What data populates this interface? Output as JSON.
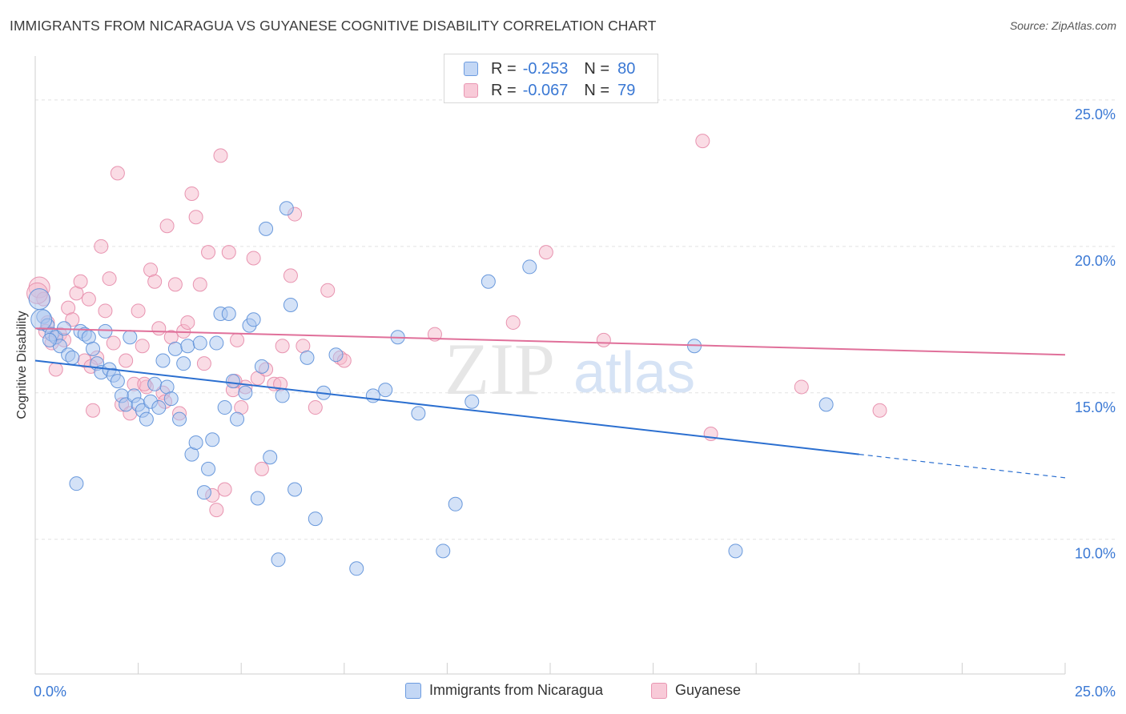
{
  "title": "IMMIGRANTS FROM NICARAGUA VS GUYANESE COGNITIVE DISABILITY CORRELATION CHART",
  "source": "Source: ZipAtlas.com",
  "watermark": {
    "zip": "ZIP",
    "atlas": "atlas"
  },
  "colors": {
    "blue_fill": "#a9c6f0",
    "blue_stroke": "#5b8fd8",
    "blue_line": "#2b6fd0",
    "pink_fill": "#f6b9cc",
    "pink_stroke": "#e58aa8",
    "pink_line": "#e0709a",
    "axis_text": "#3a78d4",
    "grid": "#e2e2e2"
  },
  "legend": {
    "rows": [
      {
        "r_label": "R =",
        "r_value": "-0.253",
        "n_label": "N =",
        "n_value": "80",
        "color": "blue"
      },
      {
        "r_label": "R =",
        "r_value": "-0.067",
        "n_label": "N =",
        "n_value": "79",
        "color": "pink"
      }
    ]
  },
  "bottom_legend": [
    "Immigrants from Nicaragua",
    "Guyanese"
  ],
  "chart_data": {
    "type": "scatter",
    "xlabel": "",
    "ylabel": "Cognitive Disability",
    "xlim": [
      0,
      25
    ],
    "ylim": [
      5.4,
      26.5
    ],
    "x_tick_labels": [
      {
        "value": 0,
        "label": "0.0%"
      },
      {
        "value": 25,
        "label": "25.0%"
      }
    ],
    "y_tick_labels": [
      {
        "value": 25,
        "label": "25.0%"
      },
      {
        "value": 20,
        "label": "20.0%"
      },
      {
        "value": 15,
        "label": "15.0%"
      },
      {
        "value": 10,
        "label": "10.0%"
      }
    ],
    "x_minor_ticks": [
      0,
      2.5,
      5,
      7.5,
      10,
      12.5,
      15,
      17.5,
      20,
      22.5,
      25
    ],
    "grid": true,
    "series": [
      {
        "name": "Immigrants from Nicaragua",
        "color": "blue",
        "trend": {
          "x0": 0,
          "y0": 16.1,
          "x1": 20,
          "y1": 12.9,
          "dashed_to_x": 25,
          "dashed_to_y": 12.1
        },
        "points": [
          [
            0.1,
            18.2
          ],
          [
            0.2,
            17.6
          ],
          [
            0.3,
            17.3
          ],
          [
            0.4,
            17.0
          ],
          [
            0.5,
            16.9
          ],
          [
            0.6,
            16.6
          ],
          [
            0.7,
            17.2
          ],
          [
            0.8,
            16.3
          ],
          [
            0.9,
            16.2
          ],
          [
            1.1,
            17.1
          ],
          [
            1.2,
            17.0
          ],
          [
            1.3,
            16.9
          ],
          [
            1.4,
            16.5
          ],
          [
            1.5,
            16.0
          ],
          [
            1.6,
            15.7
          ],
          [
            1.7,
            17.1
          ],
          [
            1.8,
            15.8
          ],
          [
            1.9,
            15.6
          ],
          [
            2.0,
            15.4
          ],
          [
            2.1,
            14.9
          ],
          [
            2.2,
            14.6
          ],
          [
            2.3,
            16.9
          ],
          [
            2.4,
            14.9
          ],
          [
            2.5,
            14.6
          ],
          [
            2.6,
            14.4
          ],
          [
            2.7,
            14.1
          ],
          [
            2.8,
            14.7
          ],
          [
            2.9,
            15.3
          ],
          [
            3.0,
            14.5
          ],
          [
            3.1,
            16.1
          ],
          [
            3.2,
            15.2
          ],
          [
            3.3,
            14.8
          ],
          [
            3.4,
            16.5
          ],
          [
            3.5,
            14.1
          ],
          [
            3.6,
            16.0
          ],
          [
            3.7,
            16.6
          ],
          [
            3.8,
            12.9
          ],
          [
            3.9,
            13.3
          ],
          [
            4.0,
            16.7
          ],
          [
            4.1,
            11.6
          ],
          [
            4.2,
            12.4
          ],
          [
            4.3,
            13.4
          ],
          [
            4.4,
            16.7
          ],
          [
            4.5,
            17.7
          ],
          [
            4.6,
            14.5
          ],
          [
            4.7,
            17.7
          ],
          [
            4.8,
            15.4
          ],
          [
            4.9,
            14.1
          ],
          [
            5.1,
            15.0
          ],
          [
            5.2,
            17.3
          ],
          [
            5.3,
            17.5
          ],
          [
            5.4,
            11.4
          ],
          [
            5.5,
            15.9
          ],
          [
            5.6,
            20.6
          ],
          [
            5.7,
            12.8
          ],
          [
            5.9,
            9.3
          ],
          [
            6.0,
            14.9
          ],
          [
            6.1,
            21.3
          ],
          [
            6.2,
            18.0
          ],
          [
            6.3,
            11.7
          ],
          [
            6.6,
            16.2
          ],
          [
            6.8,
            10.7
          ],
          [
            7.0,
            15.0
          ],
          [
            7.3,
            16.3
          ],
          [
            7.8,
            9.0
          ],
          [
            8.2,
            14.9
          ],
          [
            8.5,
            15.1
          ],
          [
            8.8,
            16.9
          ],
          [
            9.3,
            14.3
          ],
          [
            9.9,
            9.6
          ],
          [
            10.2,
            11.2
          ],
          [
            10.6,
            14.7
          ],
          [
            11.0,
            18.8
          ],
          [
            12.0,
            19.3
          ],
          [
            16.0,
            16.6
          ],
          [
            17.0,
            9.6
          ],
          [
            19.2,
            14.6
          ],
          [
            0.15,
            17.5
          ],
          [
            0.35,
            16.8
          ],
          [
            1.0,
            11.9
          ]
        ]
      },
      {
        "name": "Guyanese",
        "color": "pink",
        "trend": {
          "x0": 0,
          "y0": 17.2,
          "x1": 25,
          "y1": 16.3
        },
        "points": [
          [
            0.1,
            18.6
          ],
          [
            0.2,
            18.2
          ],
          [
            0.3,
            17.4
          ],
          [
            0.4,
            16.7
          ],
          [
            0.5,
            15.8
          ],
          [
            0.6,
            17.0
          ],
          [
            0.7,
            16.8
          ],
          [
            0.8,
            17.9
          ],
          [
            0.9,
            17.5
          ],
          [
            1.0,
            18.4
          ],
          [
            1.1,
            18.8
          ],
          [
            1.2,
            16.1
          ],
          [
            1.3,
            18.2
          ],
          [
            1.4,
            14.4
          ],
          [
            1.5,
            16.2
          ],
          [
            1.6,
            20.0
          ],
          [
            1.7,
            17.8
          ],
          [
            1.8,
            18.9
          ],
          [
            1.9,
            16.7
          ],
          [
            2.0,
            22.5
          ],
          [
            2.1,
            14.6
          ],
          [
            2.2,
            16.1
          ],
          [
            2.3,
            14.3
          ],
          [
            2.4,
            15.3
          ],
          [
            2.5,
            17.8
          ],
          [
            2.6,
            16.6
          ],
          [
            2.7,
            15.2
          ],
          [
            2.8,
            19.2
          ],
          [
            2.9,
            18.8
          ],
          [
            3.0,
            17.2
          ],
          [
            3.1,
            15.0
          ],
          [
            3.2,
            20.7
          ],
          [
            3.3,
            16.9
          ],
          [
            3.4,
            18.7
          ],
          [
            3.5,
            14.3
          ],
          [
            3.6,
            17.1
          ],
          [
            3.7,
            17.4
          ],
          [
            3.8,
            21.8
          ],
          [
            3.9,
            21.0
          ],
          [
            4.0,
            18.7
          ],
          [
            4.1,
            16.0
          ],
          [
            4.2,
            19.8
          ],
          [
            4.3,
            11.5
          ],
          [
            4.4,
            11.0
          ],
          [
            4.5,
            23.1
          ],
          [
            4.6,
            11.7
          ],
          [
            4.7,
            19.8
          ],
          [
            4.8,
            15.1
          ],
          [
            4.9,
            16.8
          ],
          [
            5.0,
            14.5
          ],
          [
            5.1,
            15.2
          ],
          [
            5.3,
            19.6
          ],
          [
            5.4,
            15.5
          ],
          [
            5.5,
            12.4
          ],
          [
            5.6,
            15.8
          ],
          [
            5.8,
            15.3
          ],
          [
            6.0,
            16.6
          ],
          [
            6.2,
            19.0
          ],
          [
            6.3,
            21.1
          ],
          [
            6.5,
            16.6
          ],
          [
            6.8,
            14.5
          ],
          [
            7.1,
            18.5
          ],
          [
            7.4,
            16.2
          ],
          [
            7.5,
            16.1
          ],
          [
            9.7,
            17.0
          ],
          [
            11.6,
            17.4
          ],
          [
            12.4,
            19.8
          ],
          [
            13.8,
            16.8
          ],
          [
            16.2,
            23.6
          ],
          [
            16.4,
            13.6
          ],
          [
            18.6,
            15.2
          ],
          [
            20.5,
            14.4
          ],
          [
            0.05,
            18.4
          ],
          [
            0.25,
            17.1
          ],
          [
            1.35,
            15.9
          ],
          [
            2.65,
            15.3
          ],
          [
            3.15,
            14.7
          ],
          [
            4.85,
            15.4
          ],
          [
            5.95,
            15.3
          ]
        ]
      }
    ]
  }
}
